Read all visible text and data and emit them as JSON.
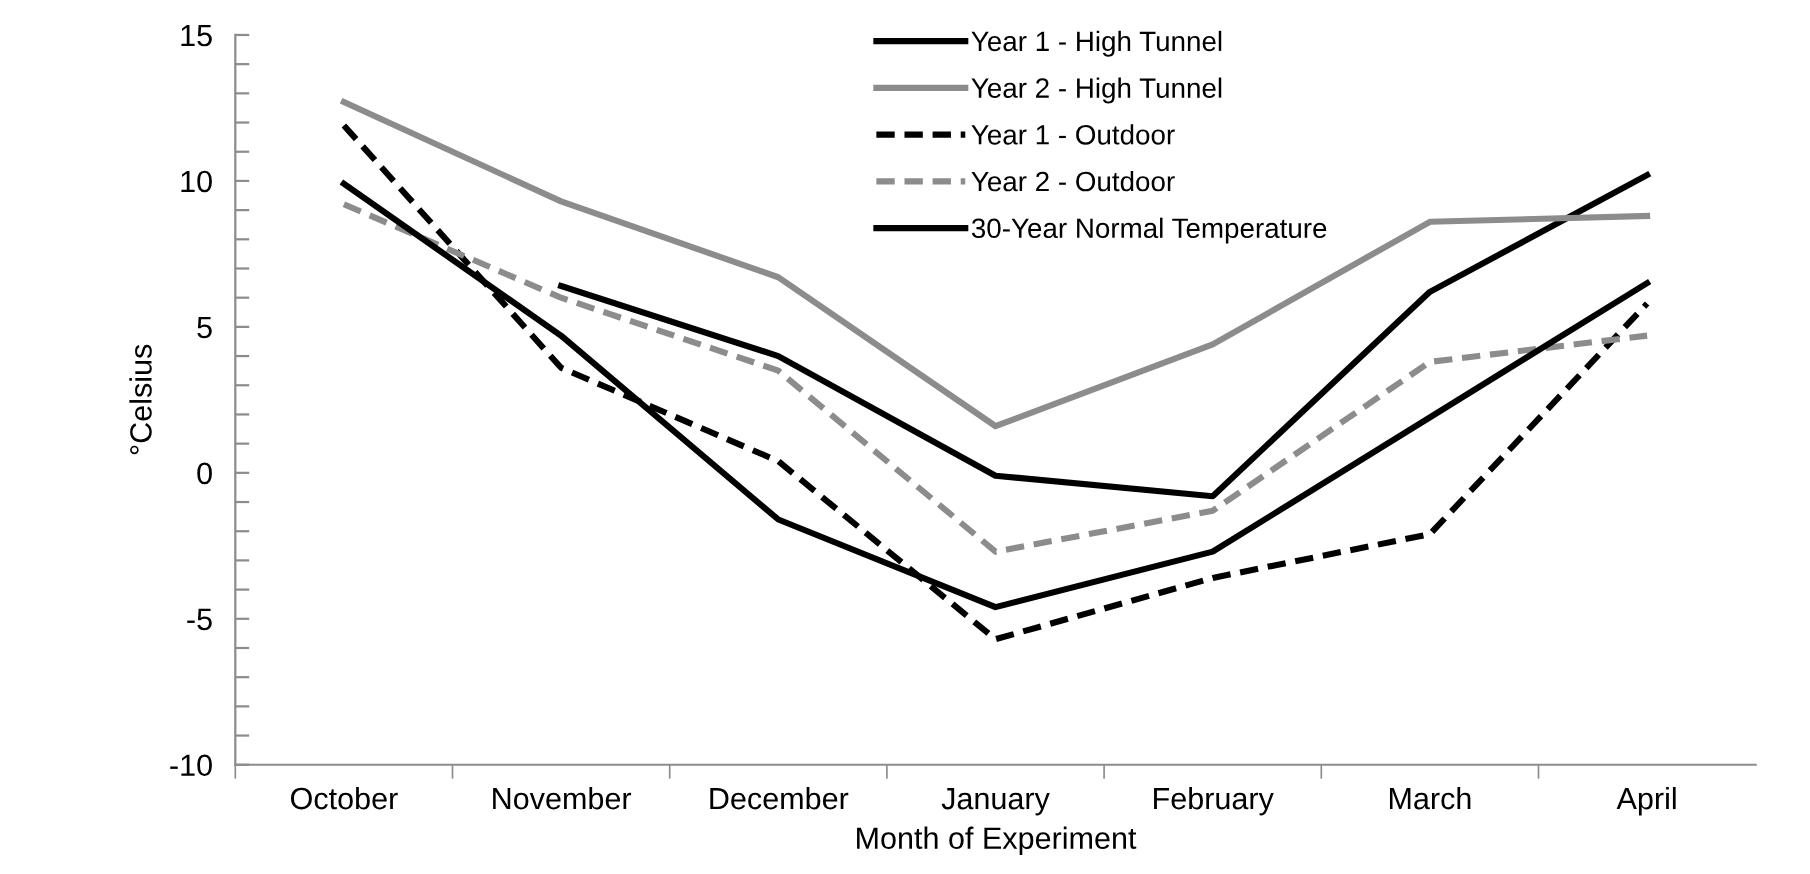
{
  "chart_data": {
    "type": "line",
    "xlabel": "Month of Experiment",
    "ylabel": "°Celsius",
    "categories": [
      "October",
      "November",
      "December",
      "January",
      "February",
      "March",
      "April"
    ],
    "series": [
      {
        "name": "Year 1 - High Tunnel",
        "color": "#000000",
        "line_style": "solid",
        "values": [
          null,
          6.4,
          4.0,
          -0.1,
          -0.8,
          6.2,
          10.2
        ]
      },
      {
        "name": "Year 2 - High Tunnel",
        "color": "#8c8c8c",
        "line_style": "solid",
        "values": [
          12.7,
          9.3,
          6.7,
          1.6,
          4.4,
          8.6,
          8.8
        ]
      },
      {
        "name": "Year 1 - Outdoor",
        "color": "#000000",
        "line_style": "dashed",
        "values": [
          11.9,
          3.6,
          0.4,
          -5.7,
          -3.6,
          -2.1,
          5.8
        ]
      },
      {
        "name": "Year 2 - Outdoor",
        "color": "#8c8c8c",
        "line_style": "dashed",
        "values": [
          9.2,
          6.0,
          3.5,
          -2.7,
          -1.3,
          3.8,
          4.7
        ]
      },
      {
        "name": "30-Year Normal Temperature",
        "color": "#000000",
        "line_style": "solid",
        "values": [
          9.9,
          4.7,
          -1.6,
          -4.6,
          -2.7,
          1.9,
          6.5
        ]
      }
    ],
    "ylim": [
      -10,
      15
    ],
    "yticks": [
      -10,
      {
        "value": -9,
        "label": null
      },
      {
        "value": -8,
        "label": null
      },
      {
        "value": -7,
        "label": null
      },
      {
        "value": -6,
        "label": null
      },
      -5,
      {
        "value": -4,
        "label": null
      },
      {
        "value": -3,
        "label": null
      },
      {
        "value": -2,
        "label": null
      },
      {
        "value": -1,
        "label": null
      },
      0,
      {
        "value": 1,
        "label": null
      },
      {
        "value": 2,
        "label": null
      },
      {
        "value": 3,
        "label": null
      },
      {
        "value": 4,
        "label": null
      },
      5,
      {
        "value": 6,
        "label": null
      },
      {
        "value": 7,
        "label": null
      },
      {
        "value": 8,
        "label": null
      },
      {
        "value": 9,
        "label": null
      },
      10,
      {
        "value": 11,
        "label": null
      },
      {
        "value": 12,
        "label": null
      },
      {
        "value": 13,
        "label": null
      },
      {
        "value": 14,
        "label": null
      },
      15
    ],
    "grid": false,
    "legend": "top",
    "marker": "none"
  }
}
